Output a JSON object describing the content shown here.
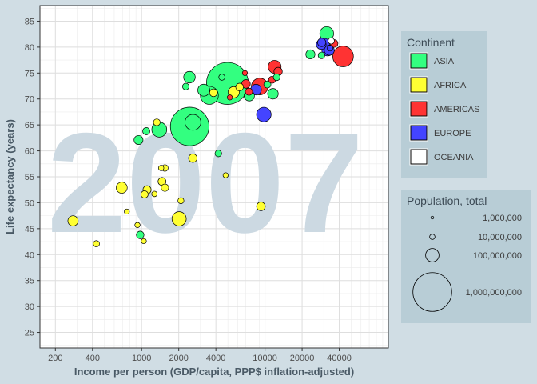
{
  "chart_data": {
    "type": "scatter",
    "watermark": "2007",
    "xlabel": "Income per person (GDP/capita, PPP$ inflation-adjusted)",
    "ylabel": "Life expectancy (years)",
    "x_scale": "log2",
    "xlim": [
      150,
      100000
    ],
    "ylim": [
      22,
      88
    ],
    "x_ticks": [
      200,
      400,
      1000,
      2000,
      4000,
      10000,
      20000,
      40000
    ],
    "x_tick_labels": [
      "200",
      "400",
      "1000",
      "2000",
      "4000",
      "10000",
      "20000",
      "40000"
    ],
    "y_ticks": [
      25,
      30,
      35,
      40,
      45,
      50,
      55,
      60,
      65,
      70,
      75,
      80,
      85
    ],
    "grid": true,
    "colors": {
      "ASIA": "#33ff80",
      "AFRICA": "#ffff33",
      "AMERICAS": "#ff3333",
      "EUROPE": "#4444ff",
      "OCEANIA": "#ffffff"
    },
    "legend_continent": {
      "title": "Continent",
      "entries": [
        "ASIA",
        "AFRICA",
        "AMERICAS",
        "EUROPE",
        "OCEANIA"
      ]
    },
    "legend_population": {
      "title": "Population, total",
      "entries": [
        {
          "label": "1,000,000",
          "value": 1000000
        },
        {
          "label": "10,000,000",
          "value": 10000000
        },
        {
          "label": "100,000,000",
          "value": 100000000
        },
        {
          "label": "1,000,000,000",
          "value": 1000000000
        }
      ]
    },
    "points": [
      {
        "continent": "ASIA",
        "gdp": 4959,
        "life": 73,
        "pop": 1318683096
      },
      {
        "continent": "ASIA",
        "gdp": 2452,
        "life": 64.7,
        "pop": 1110396331
      },
      {
        "continent": "ASIA",
        "gdp": 3541,
        "life": 70.7,
        "pop": 223547000
      },
      {
        "continent": "AMERICAS",
        "gdp": 42952,
        "life": 78.2,
        "pop": 301139947
      },
      {
        "continent": "ASIA",
        "gdp": 2605,
        "life": 65.5,
        "pop": 169270617
      },
      {
        "continent": "ASIA",
        "gdp": 1391,
        "life": 64.1,
        "pop": 150448339
      },
      {
        "continent": "AFRICA",
        "gdp": 2014,
        "life": 46.9,
        "pop": 135031164
      },
      {
        "continent": "AMERICAS",
        "gdp": 9066,
        "life": 72.4,
        "pop": 190010647
      },
      {
        "continent": "EUROPE",
        "gdp": 9786,
        "life": 67,
        "pop": 142000000
      },
      {
        "continent": "ASIA",
        "gdp": 31656,
        "life": 82.6,
        "pop": 127467972
      },
      {
        "continent": "AMERICAS",
        "gdp": 11978,
        "life": 76.2,
        "pop": 108700891
      },
      {
        "continent": "ASIA",
        "gdp": 3190,
        "life": 71.7,
        "pop": 91077287
      },
      {
        "continent": "ASIA",
        "gdp": 2442,
        "life": 74.2,
        "pop": 85262356
      },
      {
        "continent": "EUROPE",
        "gdp": 32170,
        "life": 79.4,
        "pop": 82400996
      },
      {
        "continent": "AFRICA",
        "gdp": 5581,
        "life": 71.3,
        "pop": 80264543
      },
      {
        "continent": "ASIA",
        "gdp": 11606,
        "life": 71,
        "pop": 69453570
      },
      {
        "continent": "AFRICA",
        "gdp": 690,
        "life": 52.9,
        "pop": 76511887
      },
      {
        "continent": "EUROPE",
        "gdp": 8458,
        "life": 71.8,
        "pop": 71158647
      },
      {
        "continent": "ASIA",
        "gdp": 7458,
        "life": 70.6,
        "pop": 65068149
      },
      {
        "continent": "AFRICA",
        "gdp": 278,
        "life": 46.5,
        "pop": 64606759
      },
      {
        "continent": "EUROPE",
        "gdp": 30470,
        "life": 80.7,
        "pop": 61083916
      },
      {
        "continent": "EUROPE",
        "gdp": 33203,
        "life": 79.4,
        "pop": 60776238
      },
      {
        "continent": "EUROPE",
        "gdp": 28570,
        "life": 80.5,
        "pop": 58147733
      },
      {
        "continent": "ASIA",
        "gdp": 23348,
        "life": 78.6,
        "pop": 49044790
      },
      {
        "continent": "AFRICA",
        "gdp": 9270,
        "life": 49.3,
        "pop": 43997828
      },
      {
        "continent": "ASIA",
        "gdp": 944,
        "life": 62.1,
        "pop": 47761980
      },
      {
        "continent": "AMERICAS",
        "gdp": 7007,
        "life": 72.9,
        "pop": 44227550
      },
      {
        "continent": "EUROPE",
        "gdp": 28821,
        "life": 80.9,
        "pop": 40448191
      },
      {
        "continent": "AMERICAS",
        "gdp": 12779,
        "life": 75.3,
        "pop": 40301927
      },
      {
        "continent": "AFRICA",
        "gdp": 1463,
        "life": 54.1,
        "pop": 35610177
      },
      {
        "continent": "AFRICA",
        "gdp": 1056,
        "life": 51.6,
        "pop": 29170398
      },
      {
        "continent": "AFRICA",
        "gdp": 6223,
        "life": 72.3,
        "pop": 33333216
      },
      {
        "continent": "AFRICA",
        "gdp": 2602,
        "life": 58.6,
        "pop": 42292929
      },
      {
        "continent": "AFRICA",
        "gdp": 1107,
        "life": 52.5,
        "pop": 38139640
      },
      {
        "continent": "AFRICA",
        "gdp": 1545,
        "life": 52.9,
        "pop": 31000000
      },
      {
        "continent": "AFRICA",
        "gdp": 3820,
        "life": 71.2,
        "pop": 33757175
      },
      {
        "continent": "AMERICAS",
        "gdp": 36319,
        "life": 80.7,
        "pop": 33390141
      },
      {
        "continent": "ASIA",
        "gdp": 974,
        "life": 43.8,
        "pop": 31889923
      },
      {
        "continent": "AMERICAS",
        "gdp": 11416,
        "life": 73.7,
        "pop": 26084662
      },
      {
        "continent": "AMERICAS",
        "gdp": 7409,
        "life": 71.4,
        "pop": 28674757
      },
      {
        "continent": "ASIA",
        "gdp": 12452,
        "life": 74.2,
        "pop": 24821286
      },
      {
        "continent": "ASIA",
        "gdp": 10461,
        "life": 72.8,
        "pop": 27601038
      },
      {
        "continent": "AFRICA",
        "gdp": 1328,
        "life": 65.5,
        "pop": 24181000
      },
      {
        "continent": "OCEANIA",
        "gdp": 34435,
        "life": 81.2,
        "pop": 20434176
      },
      {
        "continent": "AFRICA",
        "gdp": 430,
        "life": 42.1,
        "pop": 19951656
      },
      {
        "continent": "AFRICA",
        "gdp": 1544,
        "life": 56.7,
        "pop": 22873338
      },
      {
        "continent": "AFRICA",
        "gdp": 2082,
        "life": 50.4,
        "pop": 18013409
      },
      {
        "continent": "ASIA",
        "gdp": 4185,
        "life": 59.5,
        "pop": 23301725
      },
      {
        "continent": "ASIA",
        "gdp": 2281,
        "life": 72.4,
        "pop": 22665700
      },
      {
        "continent": "AFRICA",
        "gdp": 759,
        "life": 48.3,
        "pop": 12267493
      },
      {
        "continent": "AFRICA",
        "gdp": 1271,
        "life": 51.7,
        "pop": 14326203
      },
      {
        "continent": "AFRICA",
        "gdp": 1042,
        "life": 42.6,
        "pop": 12311143
      },
      {
        "continent": "ASIA",
        "gdp": 28718,
        "life": 78.4,
        "pop": 23174294
      },
      {
        "continent": "EUROPE",
        "gdp": 33692,
        "life": 79.8,
        "pop": 16570613
      },
      {
        "continent": "AFRICA",
        "gdp": 4797,
        "life": 55.3,
        "pop": 12420476
      },
      {
        "continent": "ASIA",
        "gdp": 1091,
        "life": 63.8,
        "pop": 28901790
      },
      {
        "continent": "ASIA",
        "gdp": 4471,
        "life": 74.2,
        "pop": 19314747
      },
      {
        "continent": "AMERICAS",
        "gdp": 5186,
        "life": 70.3,
        "pop": 12572928
      },
      {
        "continent": "AFRICA",
        "gdp": 1441,
        "life": 56.7,
        "pop": 13327079
      },
      {
        "continent": "AFRICA",
        "gdp": 926,
        "life": 45.7,
        "pop": 13000000
      },
      {
        "continent": "AMERICAS",
        "gdp": 6873,
        "life": 75,
        "pop": 12000000
      }
    ]
  }
}
